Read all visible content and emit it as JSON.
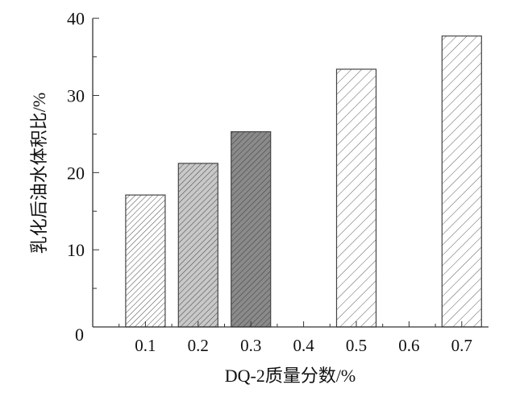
{
  "chart_data": {
    "type": "bar",
    "categories": [
      "0.1",
      "0.2",
      "0.3",
      "0.4",
      "0.5",
      "0.6",
      "0.7"
    ],
    "values": [
      17.1,
      21.2,
      25.3,
      null,
      33.4,
      null,
      37.7
    ],
    "bar_styles": [
      "dense-hatch-white",
      "dense-hatch-lightgray",
      "dense-hatch-darkgray",
      null,
      "sparse-hatch-white",
      null,
      "sparse-hatch-white"
    ],
    "title": "",
    "xlabel": "DQ-2质量分数/%",
    "ylabel": "乳化后油水体积比/%",
    "ylim": [
      0,
      40
    ],
    "yticks": [
      "0",
      "10",
      "20",
      "30",
      "40"
    ],
    "grid": false,
    "colors": {
      "axis": "#333333",
      "light_fill": "#c8c8c8",
      "dark_fill": "#8a8a8a",
      "hatch": "#333333"
    }
  }
}
